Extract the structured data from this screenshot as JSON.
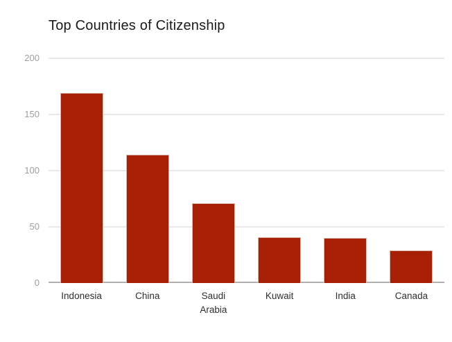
{
  "chart_data": {
    "type": "bar",
    "title": "Top Countries of Citizenship",
    "categories": [
      "Indonesia",
      "China",
      "Saudi Arabia",
      "Kuwait",
      "India",
      "Canada"
    ],
    "values": [
      169,
      114,
      71,
      41,
      40,
      29
    ],
    "xlabel": "",
    "ylabel": "",
    "ylim": [
      0,
      200
    ],
    "yticks": [
      200,
      150,
      100,
      50,
      0
    ],
    "grid": true,
    "legend": "none",
    "colors": {
      "bar_fill": "#a72006",
      "bar_stroke": "#d9b6aa",
      "gridline": "#e9e9e9",
      "baseline": "#b0b0b0",
      "y_tick_text": "#9e9e9e",
      "x_tick_text": "#2e2e2e",
      "title_text": "#1a1a1a",
      "background": "#ffffff"
    }
  }
}
